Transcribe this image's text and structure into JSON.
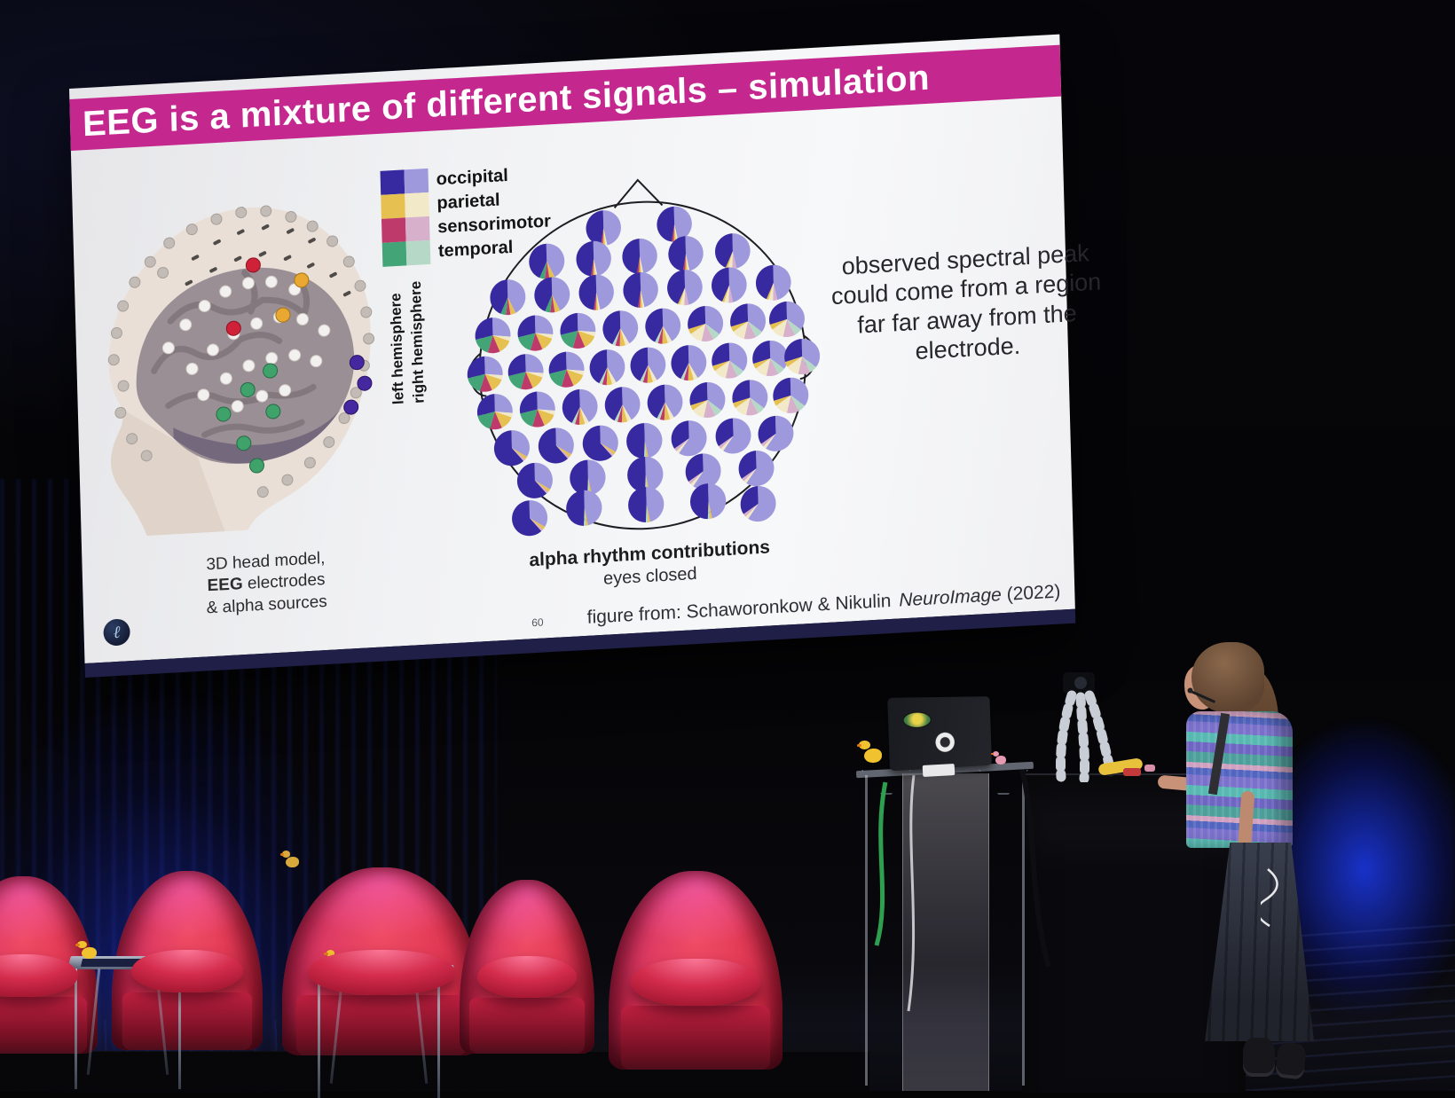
{
  "slide": {
    "title": "EEG is a mixture of different signals – simulation",
    "legend": {
      "items": [
        {
          "label": "occipital",
          "left_color": "#372aa0",
          "right_color": "#9e99dd"
        },
        {
          "label": "parietal",
          "left_color": "#e6c050",
          "right_color": "#f2e9c8"
        },
        {
          "label": "sensorimotor",
          "left_color": "#bd3a6a",
          "right_color": "#d7b0cc"
        },
        {
          "label": "temporal",
          "left_color": "#43a478",
          "right_color": "#b5d9c6"
        }
      ],
      "hemisphere_labels": [
        "left hemisphere",
        "right hemisphere"
      ]
    },
    "head_model": {
      "caption_lines": [
        "3D head model,",
        "EEG electrodes",
        "& alpha sources"
      ],
      "electrodes": {
        "scalp": [
          [
            30,
            190
          ],
          [
            34,
            160
          ],
          [
            42,
            130
          ],
          [
            56,
            104
          ],
          [
            74,
            82
          ],
          [
            96,
            62
          ],
          [
            122,
            48
          ],
          [
            150,
            38
          ],
          [
            178,
            32
          ],
          [
            206,
            32
          ],
          [
            234,
            40
          ],
          [
            258,
            52
          ],
          [
            280,
            70
          ],
          [
            298,
            94
          ],
          [
            310,
            122
          ],
          [
            316,
            152
          ],
          [
            318,
            182
          ],
          [
            312,
            212
          ],
          [
            302,
            242
          ],
          [
            288,
            270
          ],
          [
            270,
            296
          ],
          [
            248,
            318
          ],
          [
            222,
            336
          ],
          [
            194,
            348
          ],
          [
            40,
            220
          ],
          [
            36,
            250
          ],
          [
            48,
            280
          ],
          [
            88,
            95
          ],
          [
            64,
            300
          ]
        ],
        "dashes": [
          [
            120,
            80
          ],
          [
            145,
            64
          ],
          [
            172,
            54
          ],
          [
            200,
            50
          ],
          [
            228,
            56
          ],
          [
            252,
            68
          ],
          [
            140,
            95
          ],
          [
            168,
            84
          ],
          [
            196,
            80
          ],
          [
            224,
            86
          ],
          [
            250,
            96
          ],
          [
            275,
            108
          ],
          [
            112,
            108
          ],
          [
            290,
            130
          ]
        ],
        "brain_white": [
          [
            92,
            180
          ],
          [
            112,
            155
          ],
          [
            134,
            135
          ],
          [
            158,
            120
          ],
          [
            184,
            112
          ],
          [
            210,
            112
          ],
          [
            236,
            122
          ],
          [
            118,
            205
          ],
          [
            142,
            185
          ],
          [
            166,
            168
          ],
          [
            192,
            158
          ],
          [
            218,
            152
          ],
          [
            244,
            156
          ],
          [
            268,
            170
          ],
          [
            130,
            235
          ],
          [
            156,
            218
          ],
          [
            182,
            205
          ],
          [
            208,
            198
          ],
          [
            234,
            196
          ],
          [
            258,
            204
          ],
          [
            168,
            250
          ],
          [
            196,
            240
          ],
          [
            222,
            235
          ]
        ],
        "red": [
          [
            190,
            92
          ],
          [
            166,
            162
          ]
        ],
        "yellow": [
          [
            244,
            112
          ],
          [
            222,
            150
          ]
        ],
        "green": [
          [
            206,
            212
          ],
          [
            180,
            232
          ],
          [
            152,
            258
          ],
          [
            208,
            258
          ],
          [
            174,
            292
          ],
          [
            188,
            318
          ]
        ],
        "purple": [
          [
            304,
            208
          ],
          [
            312,
            232
          ],
          [
            296,
            258
          ]
        ]
      }
    },
    "topoplot": {
      "caption_bold": "alpha rhythm contributions",
      "caption_sub": "eyes closed",
      "colors": {
        "O1": "#372aa0",
        "O2": "#9e99dd",
        "P1": "#e6c050",
        "P2": "#f2e9c8",
        "S1": "#bd3a6a",
        "S2": "#d7b0cc",
        "T1": "#43a478",
        "T2": "#b5d9c6"
      },
      "presets": {
        "front": [
          [
            "O2",
            0.47
          ],
          [
            "P2",
            0.02
          ],
          [
            "P1",
            0.02
          ],
          [
            "S1",
            0.02
          ],
          [
            "O1",
            0.47
          ]
        ],
        "frontL": [
          [
            "O2",
            0.43
          ],
          [
            "P1",
            0.05
          ],
          [
            "S1",
            0.04
          ],
          [
            "T1",
            0.05
          ],
          [
            "O1",
            0.43
          ]
        ],
        "frontR": [
          [
            "O2",
            0.47
          ],
          [
            "S2",
            0.04
          ],
          [
            "P2",
            0.04
          ],
          [
            "P1",
            0.02
          ],
          [
            "O1",
            0.43
          ]
        ],
        "midL": [
          [
            "O2",
            0.27
          ],
          [
            "P2",
            0.04
          ],
          [
            "P1",
            0.13
          ],
          [
            "S1",
            0.11
          ],
          [
            "T1",
            0.17
          ],
          [
            "O1",
            0.28
          ]
        ],
        "mid": [
          [
            "O2",
            0.42
          ],
          [
            "P2",
            0.04
          ],
          [
            "P1",
            0.05
          ],
          [
            "S1",
            0.04
          ],
          [
            "T2",
            0.03
          ],
          [
            "O1",
            0.42
          ]
        ],
        "midR": [
          [
            "O2",
            0.36
          ],
          [
            "T2",
            0.07
          ],
          [
            "S2",
            0.11
          ],
          [
            "P2",
            0.12
          ],
          [
            "P1",
            0.05
          ],
          [
            "O1",
            0.29
          ]
        ],
        "backL": [
          [
            "O2",
            0.34
          ],
          [
            "P1",
            0.03
          ],
          [
            "S2",
            0.02
          ],
          [
            "O1",
            0.61
          ]
        ],
        "backR": [
          [
            "O2",
            0.6
          ],
          [
            "P2",
            0.03
          ],
          [
            "S2",
            0.03
          ],
          [
            "O1",
            0.34
          ]
        ],
        "back": [
          [
            "O2",
            0.47
          ],
          [
            "P1",
            0.02
          ],
          [
            "T2",
            0.02
          ],
          [
            "O1",
            0.49
          ]
        ]
      },
      "pies": [
        [
          180,
          78,
          "front"
        ],
        [
          260,
          78,
          "front"
        ],
        [
          115,
          112,
          "frontL"
        ],
        [
          168,
          112,
          "front"
        ],
        [
          220,
          112,
          "front"
        ],
        [
          272,
          112,
          "front"
        ],
        [
          325,
          112,
          "frontR"
        ],
        [
          70,
          150,
          "frontL"
        ],
        [
          120,
          150,
          "frontL"
        ],
        [
          170,
          150,
          "front"
        ],
        [
          220,
          150,
          "front"
        ],
        [
          270,
          150,
          "frontR"
        ],
        [
          320,
          150,
          "frontR"
        ],
        [
          370,
          150,
          "frontR"
        ],
        [
          52,
          192,
          "midL"
        ],
        [
          100,
          192,
          "midL"
        ],
        [
          148,
          192,
          "midL"
        ],
        [
          196,
          192,
          "mid"
        ],
        [
          244,
          192,
          "mid"
        ],
        [
          292,
          192,
          "midR"
        ],
        [
          340,
          192,
          "midR"
        ],
        [
          384,
          192,
          "midR"
        ],
        [
          42,
          235,
          "midL"
        ],
        [
          88,
          235,
          "midL"
        ],
        [
          134,
          235,
          "midL"
        ],
        [
          180,
          235,
          "mid"
        ],
        [
          226,
          235,
          "mid"
        ],
        [
          272,
          235,
          "mid"
        ],
        [
          318,
          235,
          "midR"
        ],
        [
          364,
          235,
          "midR"
        ],
        [
          400,
          235,
          "midR"
        ],
        [
          52,
          278,
          "midL"
        ],
        [
          100,
          278,
          "midL"
        ],
        [
          148,
          278,
          "mid"
        ],
        [
          196,
          278,
          "mid"
        ],
        [
          244,
          278,
          "mid"
        ],
        [
          292,
          278,
          "midR"
        ],
        [
          340,
          278,
          "midR"
        ],
        [
          386,
          278,
          "midR"
        ],
        [
          70,
          320,
          "backL"
        ],
        [
          120,
          320,
          "backL"
        ],
        [
          170,
          320,
          "backL"
        ],
        [
          220,
          320,
          "back"
        ],
        [
          270,
          320,
          "backR"
        ],
        [
          320,
          320,
          "backR"
        ],
        [
          368,
          320,
          "backR"
        ],
        [
          95,
          358,
          "backL"
        ],
        [
          155,
          358,
          "back"
        ],
        [
          220,
          358,
          "back"
        ],
        [
          285,
          358,
          "backR"
        ],
        [
          345,
          358,
          "backR"
        ],
        [
          150,
          392,
          "back"
        ],
        [
          220,
          392,
          "back"
        ],
        [
          290,
          392,
          "back"
        ],
        [
          88,
          400,
          "backL"
        ],
        [
          346,
          398,
          "backR"
        ]
      ],
      "pie_radius": 20
    },
    "side_note": "observed spectral peak could come from a region far far away from the electrode.",
    "footer": {
      "slide_number": "60",
      "credit_prefix": "figure from: Schaworonkow & Nikulin",
      "journal": "NeuroImage",
      "year": "(2022)"
    },
    "logo_glyph": "ℓ"
  },
  "palette": {
    "title_bar": "#c4288e",
    "screen_bg": "#f1f2f4",
    "chair_red": "#d72a47",
    "stage_blue_light": "#1c3aeb",
    "lanyard_green": "#2e9e4f",
    "duck_yellow": "#f1c230"
  }
}
